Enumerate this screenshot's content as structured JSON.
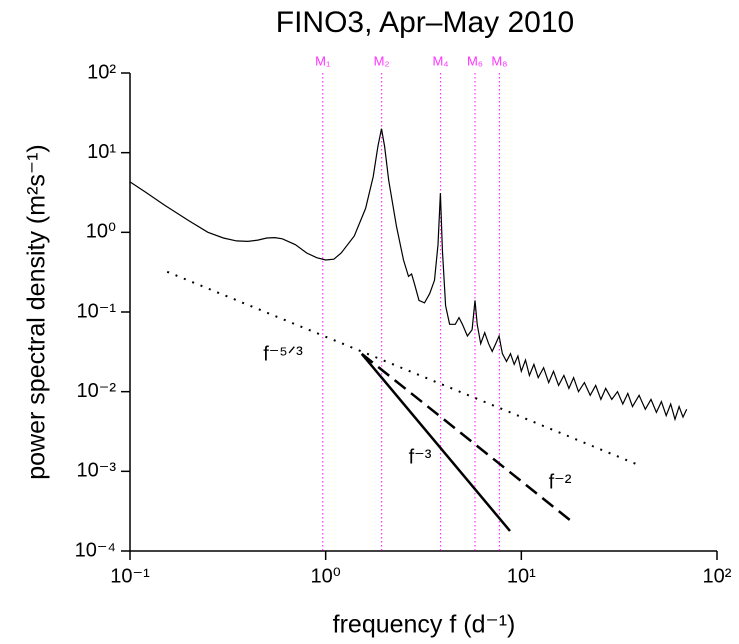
{
  "chart_data": {
    "type": "line",
    "title": "FINO3, Apr–May 2010",
    "xlabel": "frequency f (d⁻¹)",
    "ylabel": "power spectral density (m²s⁻¹)",
    "xscale": "log",
    "yscale": "log",
    "xlim": [
      0.1,
      100
    ],
    "ylim": [
      0.0001,
      100
    ],
    "xticks": [
      {
        "value": 0.1,
        "label": "10⁻¹"
      },
      {
        "value": 1,
        "label": "10⁰"
      },
      {
        "value": 10,
        "label": "10¹"
      },
      {
        "value": 100,
        "label": "10²"
      }
    ],
    "yticks": [
      {
        "value": 0.0001,
        "label": "10⁻⁴"
      },
      {
        "value": 0.001,
        "label": "10⁻³"
      },
      {
        "value": 0.01,
        "label": "10⁻²"
      },
      {
        "value": 0.1,
        "label": "10⁻¹"
      },
      {
        "value": 1,
        "label": "10⁰"
      },
      {
        "value": 10,
        "label": "10¹"
      },
      {
        "value": 100,
        "label": "10²"
      }
    ],
    "tidal_color": "#ff33ff",
    "tidal_lines": [
      {
        "label": "M₁",
        "x": 0.966
      },
      {
        "label": "M₂",
        "x": 1.932
      },
      {
        "label": "M₄",
        "x": 3.864
      },
      {
        "label": "M₆",
        "x": 5.796
      },
      {
        "label": "M₈",
        "x": 7.728
      }
    ],
    "series": [
      {
        "color": "#000000",
        "dash": "solid",
        "width": 1.2,
        "x": [
          0.1,
          0.12,
          0.15,
          0.2,
          0.25,
          0.3,
          0.35,
          0.4,
          0.45,
          0.5,
          0.55,
          0.6,
          0.7,
          0.8,
          0.9,
          1.0,
          1.1,
          1.2,
          1.4,
          1.6,
          1.75,
          1.85,
          1.93,
          2.0,
          2.1,
          2.3,
          2.5,
          2.65,
          2.75,
          2.85,
          3.0,
          3.2,
          3.4,
          3.6,
          3.75,
          3.86,
          3.95,
          4.1,
          4.3,
          4.6,
          4.8,
          5.0,
          5.3,
          5.6,
          5.8,
          5.95,
          6.2,
          6.5,
          6.8,
          7.1,
          7.4,
          7.7,
          8.0,
          8.4,
          8.8,
          9.2,
          9.6,
          10,
          10.5,
          11,
          11.6,
          12.2,
          13,
          13.8,
          14.6,
          15.5,
          16.5,
          17.5,
          18.5,
          19.6,
          21,
          22.5,
          24,
          25.5,
          27,
          29,
          31,
          33,
          35,
          37,
          40,
          43,
          46,
          49,
          52,
          55,
          58,
          61,
          64,
          67,
          70
        ],
        "values": [
          4.3,
          3.2,
          2.2,
          1.4,
          1.0,
          0.85,
          0.78,
          0.77,
          0.8,
          0.85,
          0.86,
          0.83,
          0.7,
          0.55,
          0.48,
          0.45,
          0.46,
          0.55,
          0.9,
          2.0,
          5,
          12,
          20,
          12,
          4.5,
          1.2,
          0.45,
          0.28,
          0.3,
          0.22,
          0.14,
          0.13,
          0.17,
          0.25,
          0.7,
          3.1,
          0.6,
          0.12,
          0.07,
          0.07,
          0.085,
          0.07,
          0.05,
          0.06,
          0.14,
          0.07,
          0.04,
          0.055,
          0.04,
          0.032,
          0.04,
          0.05,
          0.03,
          0.024,
          0.03,
          0.022,
          0.028,
          0.018,
          0.025,
          0.016,
          0.022,
          0.015,
          0.02,
          0.013,
          0.018,
          0.012,
          0.016,
          0.011,
          0.015,
          0.01,
          0.013,
          0.009,
          0.012,
          0.008,
          0.011,
          0.008,
          0.01,
          0.007,
          0.0095,
          0.0065,
          0.009,
          0.006,
          0.008,
          0.0055,
          0.0075,
          0.005,
          0.007,
          0.0045,
          0.0065,
          0.0048,
          0.006
        ]
      },
      {
        "color": "#000000",
        "dash": "dotted",
        "width": 2,
        "x": [
          0.155,
          40.8
        ],
        "values": [
          0.32,
          0.00117
        ]
      },
      {
        "color": "#000000",
        "dash": "dashed",
        "width": 2.5,
        "x": [
          1.53,
          17.7
        ],
        "values": [
          0.0298,
          0.000245
        ]
      },
      {
        "color": "#000000",
        "dash": "solid",
        "width": 2.5,
        "x": [
          1.53,
          8.75
        ],
        "values": [
          0.0298,
          0.000178
        ]
      }
    ],
    "annotations": [
      "f⁻⁵ᐟ³",
      "f⁻³",
      "f⁻²"
    ]
  }
}
